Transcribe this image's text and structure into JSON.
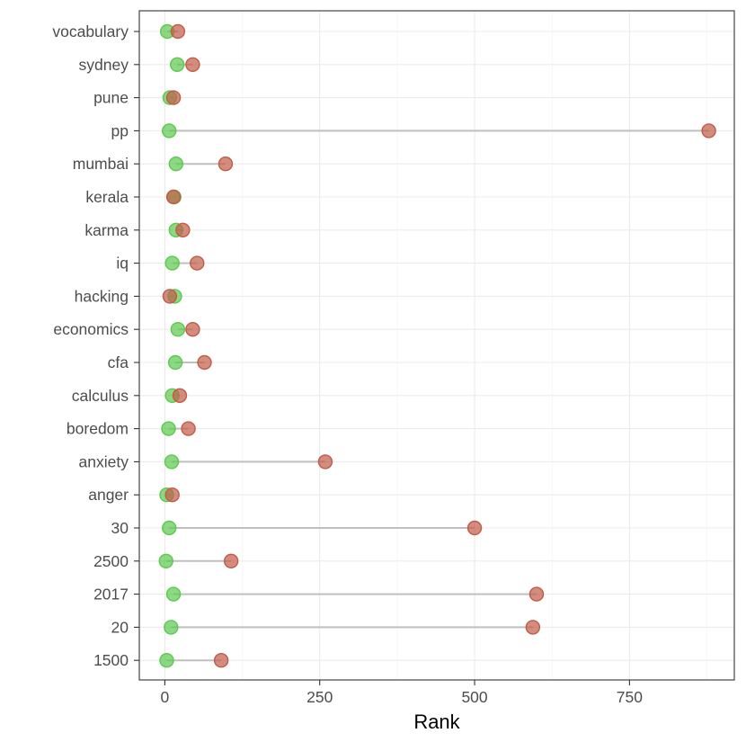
{
  "chart_data": {
    "type": "dumbbell",
    "title": "",
    "xlabel": "Rank",
    "ylabel": "",
    "xlim": [
      -28,
      928
    ],
    "xticks": [
      0,
      250,
      500,
      750
    ],
    "xtick_labels": [
      "0",
      "250",
      "500",
      "750"
    ],
    "grid": true,
    "categories": [
      "vocabulary",
      "sydney",
      "pune",
      "pp",
      "mumbai",
      "kerala",
      "karma",
      "iq",
      "hacking",
      "economics",
      "cfa",
      "calculus",
      "boredom",
      "anxiety",
      "anger",
      "30",
      "2500",
      "2017",
      "20",
      "1500"
    ],
    "series": [
      {
        "color": "#5cc94f",
        "values": [
          4,
          20,
          8,
          7,
          18,
          15,
          18,
          12,
          16,
          21,
          17,
          12,
          6,
          11,
          3,
          7,
          2,
          14,
          10,
          3
        ]
      },
      {
        "color": "#c25b48",
        "values": [
          21,
          45,
          14,
          878,
          98,
          14,
          29,
          52,
          8,
          45,
          64,
          24,
          38,
          259,
          12,
          500,
          107,
          600,
          594,
          91
        ]
      }
    ],
    "connector_color": "#bfbfbf"
  }
}
